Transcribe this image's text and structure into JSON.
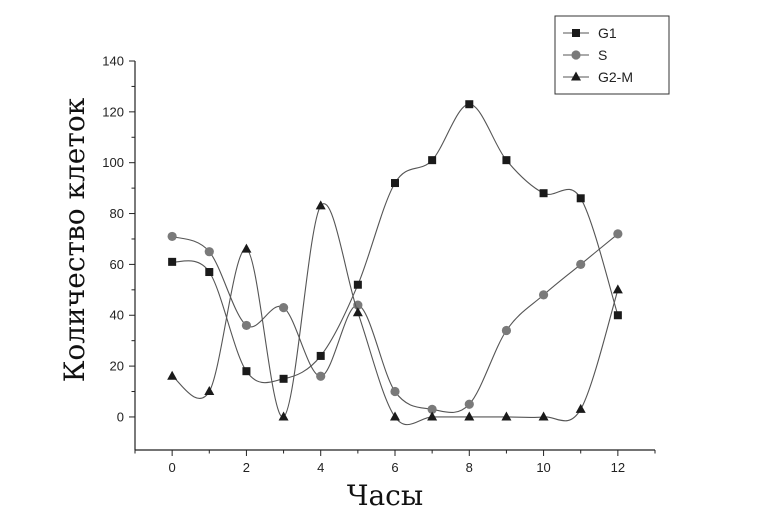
{
  "chart_data": {
    "type": "line",
    "xlabel": "Часы",
    "ylabel": "Количество клеток",
    "xlim": [
      -1,
      13
    ],
    "ylim": [
      -13,
      140
    ],
    "xticks": [
      0,
      2,
      4,
      6,
      8,
      10,
      12
    ],
    "yticks": [
      0,
      20,
      40,
      60,
      80,
      100,
      120,
      140
    ],
    "x": [
      0,
      1,
      2,
      3,
      4,
      5,
      6,
      7,
      8,
      9,
      10,
      11,
      12
    ],
    "legend_position": "top-right",
    "grid": false,
    "series": [
      {
        "name": "G1",
        "marker": "square",
        "color": "#1a1a1a",
        "values": [
          61,
          57,
          18,
          15,
          24,
          52,
          92,
          101,
          123,
          101,
          88,
          86,
          40
        ]
      },
      {
        "name": "S",
        "marker": "circle",
        "color": "#7a7a7a",
        "values": [
          71,
          65,
          36,
          43,
          16,
          44,
          10,
          3,
          5,
          34,
          48,
          60,
          72
        ]
      },
      {
        "name": "G2-M",
        "marker": "triangle",
        "color": "#1a1a1a",
        "values": [
          16,
          10,
          66,
          0,
          83,
          41,
          0,
          0,
          0,
          0,
          0,
          3,
          50
        ]
      }
    ]
  }
}
